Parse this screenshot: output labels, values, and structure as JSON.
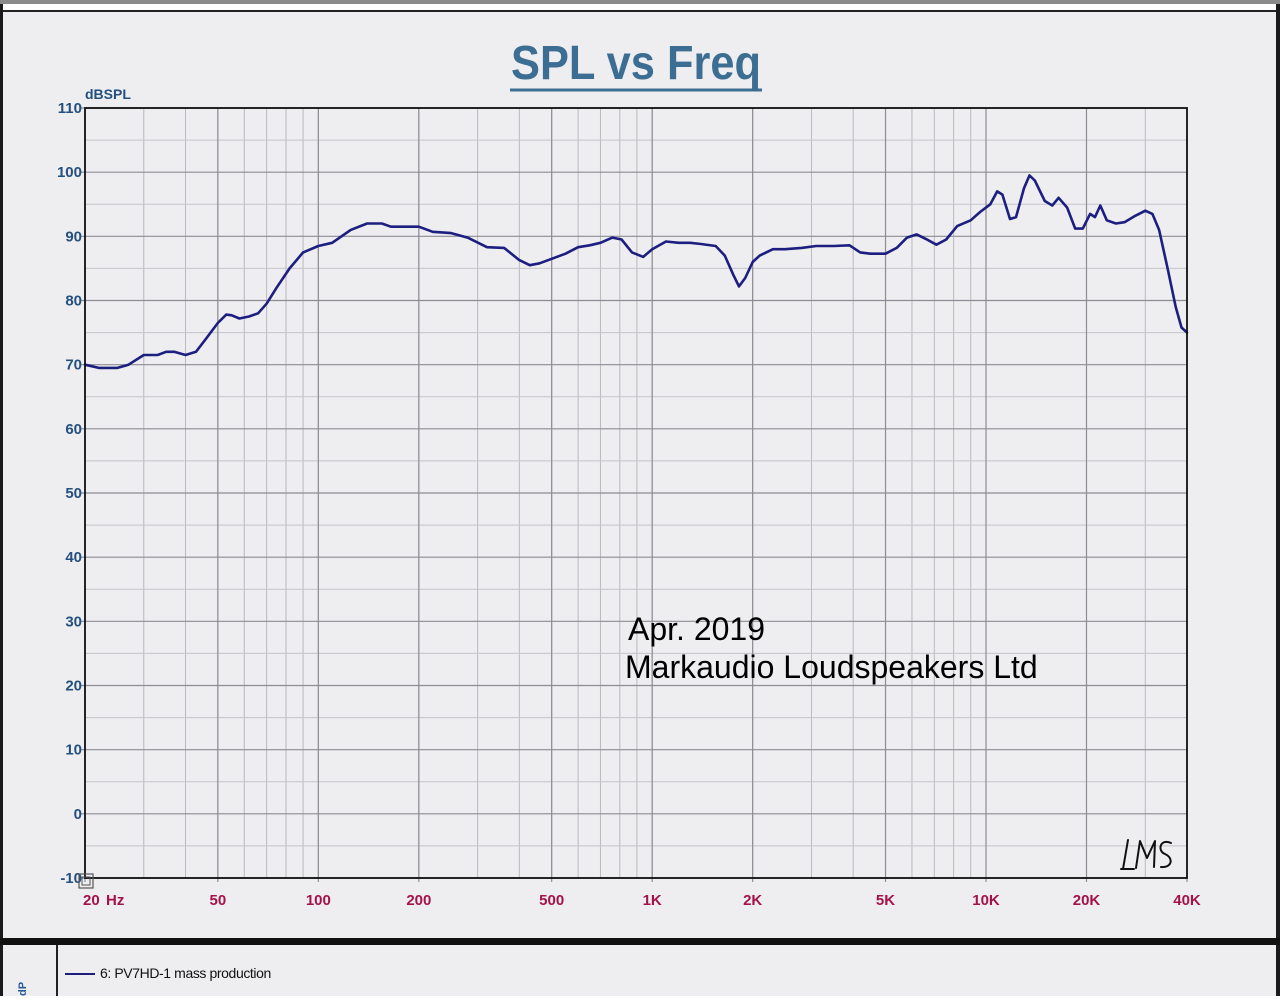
{
  "chart_data": {
    "type": "line",
    "title": "SPL vs Freq",
    "ylabel": "dBSPL",
    "xlabel": "",
    "x_scale": "log",
    "xlim": [
      20,
      40000
    ],
    "ylim": [
      -10,
      110
    ],
    "y_ticks": [
      -10,
      0,
      10,
      20,
      30,
      40,
      50,
      60,
      70,
      80,
      90,
      100,
      110
    ],
    "y_tick_labels": [
      "-10",
      "0",
      "10",
      "20",
      "30",
      "40",
      "50",
      "60",
      "70",
      "80",
      "90",
      "100",
      "110"
    ],
    "x_ticks": [
      20,
      50,
      100,
      200,
      500,
      1000,
      2000,
      5000,
      10000,
      20000,
      40000
    ],
    "x_tick_labels": [
      "20",
      "50",
      "100",
      "200",
      "500",
      "1K",
      "2K",
      "5K",
      "10K",
      "20K",
      "40K"
    ],
    "x_unit_label": "Hz",
    "grid": true,
    "annotations": [
      "Apr. 2019",
      "Markaudio Loudspeakers Ltd"
    ],
    "logo_text": "LMS",
    "series": [
      {
        "name": "6: PV7HD-1 mass production",
        "color": "#1c1f80",
        "points": [
          [
            20,
            70
          ],
          [
            22,
            69.5
          ],
          [
            25,
            69.5
          ],
          [
            27,
            70
          ],
          [
            30,
            71.5
          ],
          [
            33,
            71.5
          ],
          [
            35,
            72
          ],
          [
            37,
            72
          ],
          [
            40,
            71.5
          ],
          [
            43,
            72
          ],
          [
            46,
            74
          ],
          [
            50,
            76.5
          ],
          [
            53,
            77.8
          ],
          [
            55,
            77.7
          ],
          [
            58,
            77.2
          ],
          [
            62,
            77.5
          ],
          [
            66,
            78
          ],
          [
            70,
            79.5
          ],
          [
            75,
            82
          ],
          [
            82,
            85
          ],
          [
            90,
            87.5
          ],
          [
            100,
            88.5
          ],
          [
            110,
            89
          ],
          [
            125,
            91
          ],
          [
            140,
            92
          ],
          [
            155,
            92
          ],
          [
            165,
            91.5
          ],
          [
            180,
            91.5
          ],
          [
            200,
            91.5
          ],
          [
            220,
            90.7
          ],
          [
            250,
            90.5
          ],
          [
            280,
            89.8
          ],
          [
            320,
            88.3
          ],
          [
            360,
            88.2
          ],
          [
            400,
            86.3
          ],
          [
            430,
            85.5
          ],
          [
            460,
            85.8
          ],
          [
            500,
            86.5
          ],
          [
            550,
            87.3
          ],
          [
            600,
            88.3
          ],
          [
            650,
            88.6
          ],
          [
            700,
            89
          ],
          [
            760,
            89.8
          ],
          [
            810,
            89.5
          ],
          [
            870,
            87.5
          ],
          [
            940,
            86.8
          ],
          [
            1000,
            88
          ],
          [
            1100,
            89.2
          ],
          [
            1200,
            89
          ],
          [
            1300,
            89
          ],
          [
            1400,
            88.8
          ],
          [
            1550,
            88.5
          ],
          [
            1650,
            87
          ],
          [
            1750,
            84
          ],
          [
            1820,
            82.2
          ],
          [
            1900,
            83.5
          ],
          [
            2000,
            86
          ],
          [
            2100,
            87
          ],
          [
            2300,
            88
          ],
          [
            2500,
            88
          ],
          [
            2800,
            88.2
          ],
          [
            3100,
            88.5
          ],
          [
            3500,
            88.5
          ],
          [
            3900,
            88.6
          ],
          [
            4200,
            87.5
          ],
          [
            4500,
            87.3
          ],
          [
            5000,
            87.3
          ],
          [
            5400,
            88.2
          ],
          [
            5800,
            89.8
          ],
          [
            6200,
            90.3
          ],
          [
            6600,
            89.6
          ],
          [
            7100,
            88.7
          ],
          [
            7600,
            89.5
          ],
          [
            8200,
            91.6
          ],
          [
            9000,
            92.5
          ],
          [
            9600,
            93.8
          ],
          [
            10300,
            95
          ],
          [
            10800,
            97
          ],
          [
            11200,
            96.5
          ],
          [
            11800,
            92.7
          ],
          [
            12300,
            93
          ],
          [
            13000,
            97.5
          ],
          [
            13500,
            99.5
          ],
          [
            14000,
            98.7
          ],
          [
            15000,
            95.5
          ],
          [
            15800,
            94.8
          ],
          [
            16500,
            96
          ],
          [
            17500,
            94.5
          ],
          [
            18500,
            91.2
          ],
          [
            19500,
            91.2
          ],
          [
            20500,
            93.5
          ],
          [
            21200,
            93
          ],
          [
            22000,
            94.8
          ],
          [
            23000,
            92.5
          ],
          [
            24500,
            92
          ],
          [
            26000,
            92.2
          ],
          [
            28000,
            93.2
          ],
          [
            30000,
            94
          ],
          [
            31500,
            93.5
          ],
          [
            33000,
            91
          ],
          [
            35000,
            85
          ],
          [
            37000,
            79
          ],
          [
            38500,
            75.8
          ],
          [
            40000,
            75
          ]
        ]
      }
    ]
  },
  "legend": {
    "side_label": "dP",
    "entry": "6: PV7HD-1 mass production"
  }
}
